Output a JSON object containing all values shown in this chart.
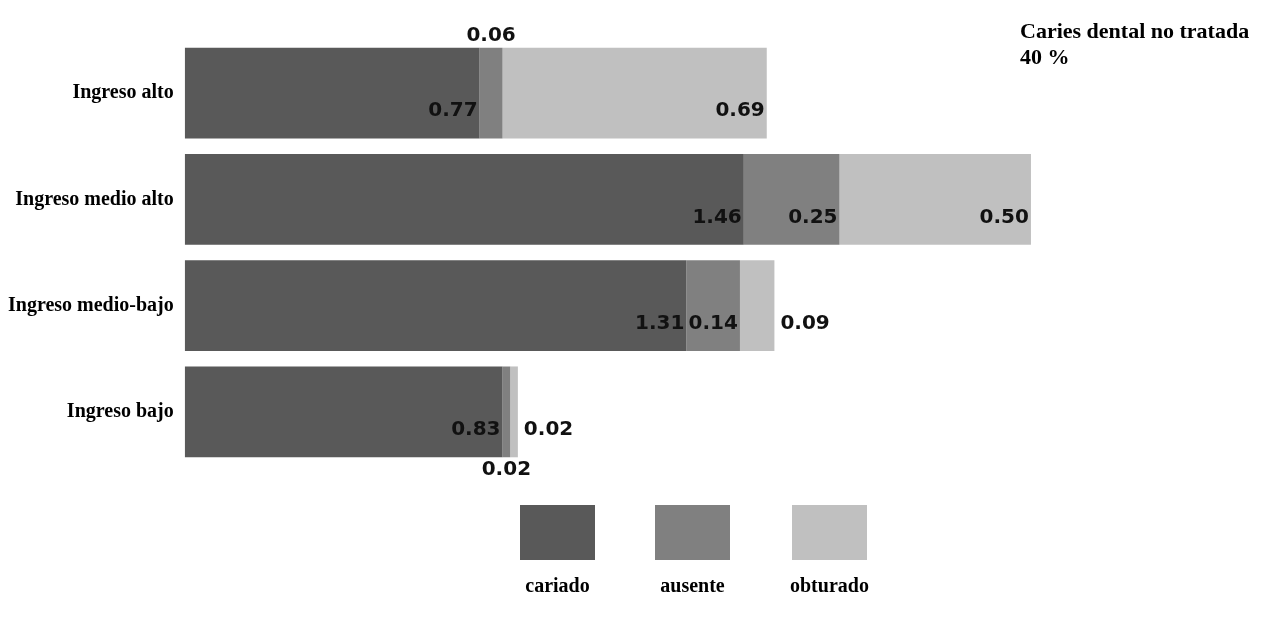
{
  "chart_data": {
    "type": "bar",
    "orientation": "horizontal",
    "stacked": true,
    "annotations": [
      "Caries dental no tratada     40 %"
    ],
    "categories": [
      "Ingreso alto",
      "Ingreso medio alto",
      "Ingreso medio-bajo",
      "Ingreso bajo"
    ],
    "series": [
      {
        "name": "cariado",
        "color": "#595959",
        "values": [
          0.77,
          1.46,
          1.31,
          0.83
        ],
        "value_labels": [
          "0.77",
          "1.46",
          "1.31",
          "0.83"
        ]
      },
      {
        "name": "ausente",
        "color": "#808080",
        "values": [
          0.06,
          0.25,
          0.14,
          0.02
        ],
        "value_labels": [
          "0.06",
          "0.25",
          "0.14",
          "0.02"
        ]
      },
      {
        "name": "obturado",
        "color": "#c0c0c0",
        "values": [
          0.69,
          0.5,
          0.09,
          0.02
        ],
        "value_labels": [
          "0.69",
          "0.50",
          "0.09",
          "0.02"
        ]
      }
    ],
    "tick_labels": "y",
    "grid": false,
    "legend": "bottom"
  }
}
